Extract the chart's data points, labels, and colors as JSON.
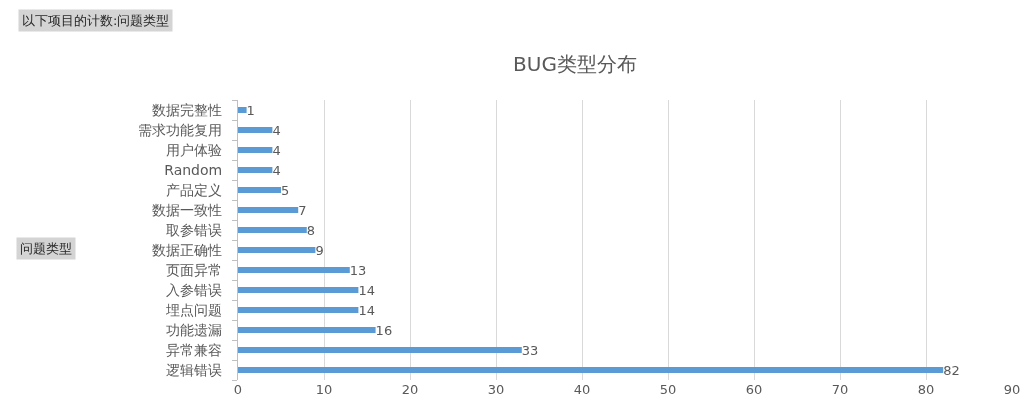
{
  "chart_data": {
    "type": "bar",
    "orientation": "horizontal",
    "title": "BUG类型分布",
    "annotations": [
      "以下项目的计数:问题类型",
      "问题类型"
    ],
    "categories": [
      "数据完整性",
      "需求功能复用",
      "用户体验",
      "Random",
      "产品定义",
      "数据一致性",
      "取参错误",
      "数据正确性",
      "页面异常",
      "入参错误",
      "埋点问题",
      "功能遗漏",
      "异常兼容",
      "逻辑错误"
    ],
    "values": [
      1,
      4,
      4,
      4,
      5,
      7,
      8,
      9,
      13,
      14,
      14,
      16,
      33,
      82
    ],
    "color": "#5b9bd5",
    "data_labels": true,
    "grid": "x",
    "xlim": [
      0,
      90
    ],
    "xticks": [
      0,
      10,
      20,
      30,
      40,
      50,
      60,
      70,
      80,
      90
    ]
  }
}
